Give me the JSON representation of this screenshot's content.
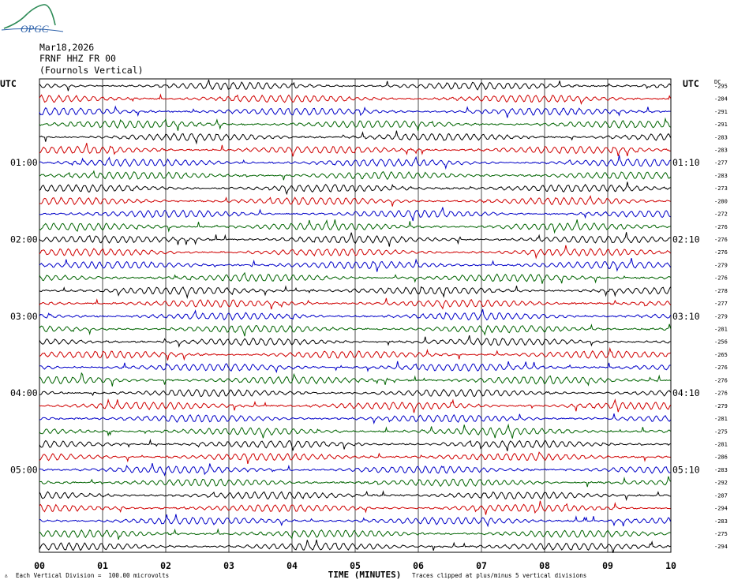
{
  "header": {
    "date": "Mar18,2026",
    "station": "FRNF HHZ FR 00",
    "description": "(Fournols Vertical)",
    "logo_text": "OPGC"
  },
  "footer": {
    "scale_note": "Each Vertical Division =  100.00 microvolts",
    "clip_note": "Traces clipped at plus/minus 5 vertical divisions"
  },
  "chart_data": {
    "type": "line",
    "title": "",
    "xlabel": "TIME (MINUTES)",
    "x_ticks": [
      "00",
      "01",
      "02",
      "03",
      "04",
      "05",
      "06",
      "07",
      "08",
      "09",
      "10"
    ],
    "xlim": [
      0,
      10
    ],
    "left_axis_title": "UTC",
    "right_axis_title": "UTC",
    "dc_label": "DC",
    "left_hour_labels": [
      {
        "row": 6,
        "label": "01:00"
      },
      {
        "row": 12,
        "label": "02:00"
      },
      {
        "row": 18,
        "label": "03:00"
      },
      {
        "row": 24,
        "label": "04:00"
      },
      {
        "row": 30,
        "label": "05:00"
      }
    ],
    "right_hour_labels": [
      {
        "row": 6,
        "label": "01:10"
      },
      {
        "row": 12,
        "label": "02:10"
      },
      {
        "row": 18,
        "label": "03:10"
      },
      {
        "row": 24,
        "label": "04:10"
      },
      {
        "row": 30,
        "label": "05:10"
      }
    ],
    "trace_colors": [
      "#000000",
      "#d00000",
      "#0000c8",
      "#006400"
    ],
    "dc_offsets": [
      "-295",
      "-284",
      "-291",
      "-291",
      "-283",
      "-283",
      "-277",
      "-283",
      "-273",
      "-280",
      "-272",
      "-276",
      "-276",
      "-276",
      "-279",
      "-276",
      "-278",
      "-277",
      "-279",
      "-281",
      "-256",
      "-265",
      "-276",
      "-276",
      "-276",
      "-279",
      "-281",
      "-275",
      "-281",
      "-286",
      "-283",
      "-292",
      "-287",
      "-294",
      "-283",
      "-275",
      "-294"
    ],
    "grid": true
  }
}
